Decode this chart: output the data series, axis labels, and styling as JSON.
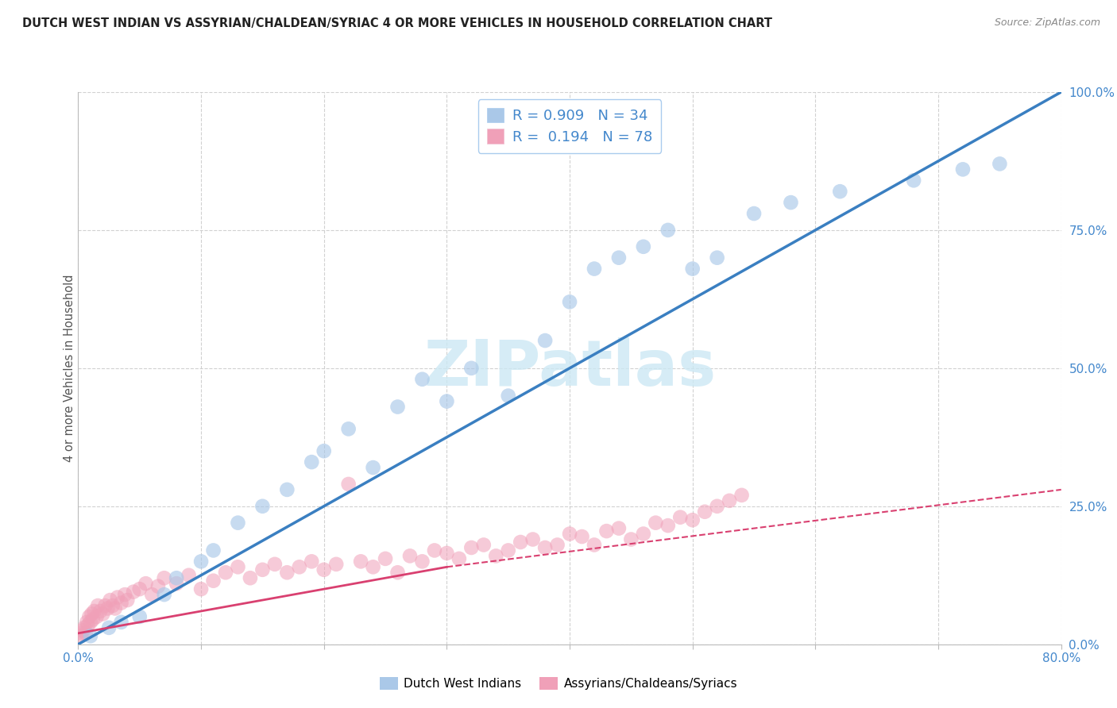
{
  "title": "DUTCH WEST INDIAN VS ASSYRIAN/CHALDEAN/SYRIAC 4 OR MORE VEHICLES IN HOUSEHOLD CORRELATION CHART",
  "source": "Source: ZipAtlas.com",
  "ylabel": "4 or more Vehicles in Household",
  "ytick_labels": [
    "0.0%",
    "25.0%",
    "50.0%",
    "75.0%",
    "100.0%"
  ],
  "ytick_vals": [
    0,
    25,
    50,
    75,
    100
  ],
  "xlim": [
    0,
    80
  ],
  "ylim": [
    0,
    100
  ],
  "blue_R": 0.909,
  "blue_N": 34,
  "pink_R": 0.194,
  "pink_N": 78,
  "blue_label": "Dutch West Indians",
  "pink_label": "Assyrians/Chaldeans/Syriacs",
  "blue_color": "#aac8e8",
  "pink_color": "#f0a0b8",
  "blue_line_color": "#3a7fc1",
  "pink_line_color": "#d94070",
  "watermark_color": "#cce8f4",
  "watermark": "ZIPatlas",
  "background_color": "#ffffff",
  "title_fontsize": 10.5,
  "source_fontsize": 9,
  "blue_line": {
    "x0": 0,
    "y0": 0,
    "x1": 80,
    "y1": 100
  },
  "pink_line_solid": {
    "x0": 0,
    "y0": 2,
    "x1": 30,
    "y1": 14
  },
  "pink_line_dash": {
    "x0": 0,
    "y0": 2,
    "x1": 80,
    "y1": 28
  },
  "blue_pts_x": [
    1.0,
    2.5,
    3.5,
    5.0,
    7.0,
    8.0,
    10.0,
    11.0,
    13.0,
    15.0,
    17.0,
    19.0,
    20.0,
    22.0,
    24.0,
    26.0,
    28.0,
    30.0,
    32.0,
    35.0,
    38.0,
    40.0,
    42.0,
    44.0,
    46.0,
    48.0,
    50.0,
    52.0,
    55.0,
    58.0,
    62.0,
    68.0,
    72.0,
    75.0
  ],
  "blue_pts_y": [
    1.5,
    3.0,
    4.0,
    5.0,
    9.0,
    12.0,
    15.0,
    17.0,
    22.0,
    25.0,
    28.0,
    33.0,
    35.0,
    39.0,
    32.0,
    43.0,
    48.0,
    44.0,
    50.0,
    45.0,
    55.0,
    62.0,
    68.0,
    70.0,
    72.0,
    75.0,
    68.0,
    70.0,
    78.0,
    80.0,
    82.0,
    84.0,
    86.0,
    87.0
  ],
  "pink_pts_x": [
    0.2,
    0.3,
    0.4,
    0.5,
    0.6,
    0.7,
    0.8,
    0.9,
    1.0,
    1.1,
    1.2,
    1.3,
    1.5,
    1.6,
    1.8,
    2.0,
    2.2,
    2.4,
    2.6,
    2.8,
    3.0,
    3.2,
    3.5,
    3.8,
    4.0,
    4.5,
    5.0,
    5.5,
    6.0,
    6.5,
    7.0,
    8.0,
    9.0,
    10.0,
    11.0,
    12.0,
    13.0,
    14.0,
    15.0,
    16.0,
    17.0,
    18.0,
    19.0,
    20.0,
    21.0,
    22.0,
    23.0,
    24.0,
    25.0,
    26.0,
    27.0,
    28.0,
    29.0,
    30.0,
    31.0,
    32.0,
    33.0,
    34.0,
    35.0,
    36.0,
    37.0,
    38.0,
    39.0,
    40.0,
    41.0,
    42.0,
    43.0,
    44.0,
    45.0,
    46.0,
    47.0,
    48.0,
    49.0,
    50.0,
    51.0,
    52.0,
    53.0,
    54.0
  ],
  "pink_pts_y": [
    1.5,
    2.0,
    2.5,
    3.0,
    2.0,
    4.0,
    3.5,
    5.0,
    4.0,
    5.5,
    4.5,
    6.0,
    5.0,
    7.0,
    6.0,
    5.5,
    7.0,
    6.5,
    8.0,
    7.0,
    6.5,
    8.5,
    7.5,
    9.0,
    8.0,
    9.5,
    10.0,
    11.0,
    9.0,
    10.5,
    12.0,
    11.0,
    12.5,
    10.0,
    11.5,
    13.0,
    14.0,
    12.0,
    13.5,
    14.5,
    13.0,
    14.0,
    15.0,
    13.5,
    14.5,
    29.0,
    15.0,
    14.0,
    15.5,
    13.0,
    16.0,
    15.0,
    17.0,
    16.5,
    15.5,
    17.5,
    18.0,
    16.0,
    17.0,
    18.5,
    19.0,
    17.5,
    18.0,
    20.0,
    19.5,
    18.0,
    20.5,
    21.0,
    19.0,
    20.0,
    22.0,
    21.5,
    23.0,
    22.5,
    24.0,
    25.0,
    26.0,
    27.0
  ]
}
